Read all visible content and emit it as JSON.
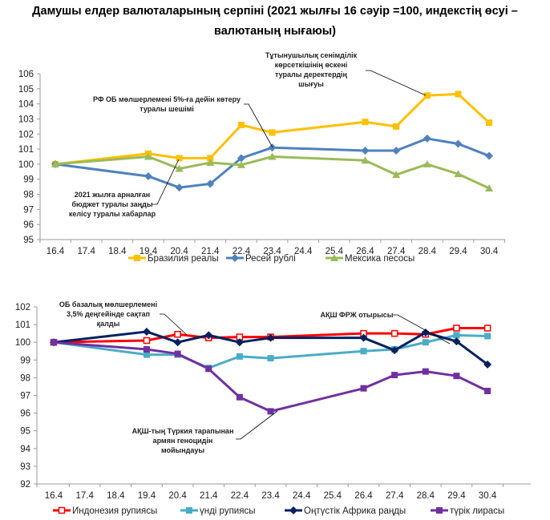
{
  "title": "Дамушы елдер валюталарының серпіні (2021 жылғы 16 сәуір =100, индекстің өсуі – валютаның нығаюы)",
  "chart_data": [
    {
      "type": "line",
      "x": [
        "16.4",
        "17.4",
        "18.4",
        "19.4",
        "20.4",
        "21.4",
        "22.4",
        "23.4",
        "24.4",
        "25.4",
        "26.4",
        "27.4",
        "28.4",
        "29.4",
        "30.4"
      ],
      "ylim": [
        95,
        106
      ],
      "yticks": [
        95,
        96,
        97,
        98,
        99,
        100,
        101,
        102,
        103,
        104,
        105,
        106
      ],
      "grid": false,
      "legend": "bottom",
      "series": [
        {
          "name": "Бразилия реалы",
          "color": "#FFC000",
          "marker": "square",
          "values": [
            100,
            null,
            null,
            100.7,
            100.4,
            100.4,
            102.6,
            102.1,
            null,
            null,
            102.8,
            102.5,
            104.55,
            104.65,
            102.75
          ]
        },
        {
          "name": "Ресей рублі",
          "color": "#4F81BD",
          "marker": "diamond",
          "values": [
            100,
            null,
            null,
            99.2,
            98.45,
            98.7,
            100.4,
            101.1,
            null,
            null,
            100.9,
            100.9,
            101.7,
            101.35,
            100.55
          ]
        },
        {
          "name": "Мексика песосы",
          "color": "#9BBB59",
          "marker": "triangle",
          "values": [
            100,
            null,
            null,
            100.5,
            99.7,
            100.1,
            99.95,
            100.5,
            null,
            null,
            100.25,
            99.3,
            100.0,
            99.35,
            98.4
          ]
        }
      ],
      "annotations": [
        {
          "lines": [
            "РФ ОБ мөлшерлемені 5%-ға дейін көтеру",
            "туралы шешімі"
          ],
          "x": "23.4",
          "series": 1
        },
        {
          "lines": [
            "Тұтынушылық сенімділік",
            "көрсеткішінің өскені",
            "туралы деректердің",
            "шығуы"
          ],
          "x": "28.4",
          "series": 0
        },
        {
          "lines": [
            "2021 жылға арналған",
            "бюджет туралы заңды",
            "келісу туралы хабарлар"
          ],
          "x": "20.4",
          "series": 0
        }
      ]
    },
    {
      "type": "line",
      "x": [
        "16.4",
        "17.4",
        "18.4",
        "19.4",
        "20.4",
        "21.4",
        "22.4",
        "23.4",
        "24.4",
        "25.4",
        "26.4",
        "27.4",
        "28.4",
        "29.4",
        "30.4"
      ],
      "ylim": [
        92,
        102
      ],
      "yticks": [
        92,
        93,
        94,
        95,
        96,
        97,
        98,
        99,
        100,
        101,
        102
      ],
      "grid": false,
      "legend": "bottom",
      "series": [
        {
          "name": "Индонезия рупиясы",
          "color": "#FF0000",
          "marker": "square-open",
          "values": [
            100,
            null,
            null,
            100.1,
            100.45,
            100.25,
            100.3,
            100.3,
            null,
            null,
            100.5,
            100.5,
            100.45,
            100.8,
            100.8
          ]
        },
        {
          "name": "үнді рупиясы",
          "color": "#4BACC6",
          "marker": "square",
          "values": [
            100,
            null,
            null,
            99.3,
            99.3,
            98.55,
            99.2,
            99.1,
            null,
            null,
            99.5,
            99.6,
            100.0,
            100.4,
            100.35
          ]
        },
        {
          "name": "Оңтүстік Африка рандЫ",
          "color": "#002060",
          "marker": "diamond",
          "values": [
            100,
            null,
            null,
            100.6,
            100.0,
            100.4,
            100.0,
            100.25,
            null,
            null,
            100.25,
            99.55,
            100.55,
            100.05,
            98.75
          ]
        },
        {
          "name": "түрік лирасы",
          "color": "#7030A0",
          "marker": "square",
          "values": [
            100,
            null,
            null,
            99.6,
            99.35,
            98.5,
            96.9,
            96.1,
            null,
            null,
            97.4,
            98.15,
            98.35,
            98.1,
            97.25
          ]
        }
      ],
      "annotations": [
        {
          "lines": [
            "ОБ базалық мөлшерлемені",
            "3,5% деңгейінде сақтап",
            "қалды"
          ],
          "x": "20.4",
          "series": 0
        },
        {
          "lines": [
            "АҚШ ФРЖ отырысы"
          ],
          "x": "28.4",
          "series": 1
        },
        {
          "lines": [
            "АҚШ-тың Түркия тарапынан",
            "армян геноцидін",
            "мойындауы"
          ],
          "x": "23.4",
          "series": 3
        }
      ]
    }
  ]
}
